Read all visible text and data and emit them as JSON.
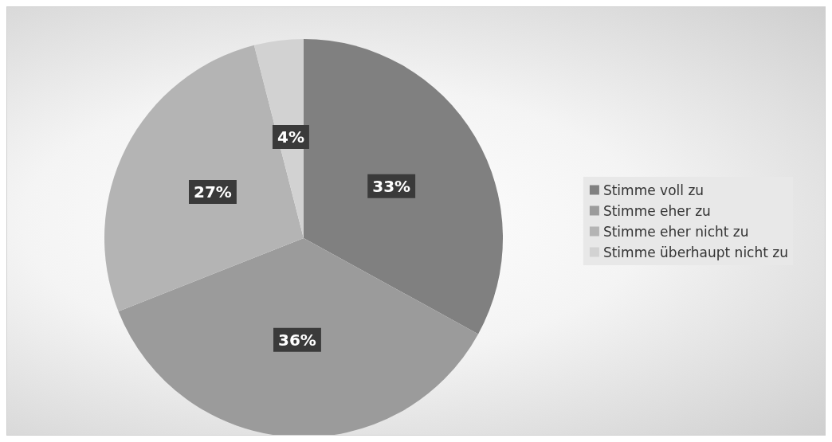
{
  "chart_data": {
    "type": "pie",
    "categories": [
      "Stimme voll zu",
      "Stimme eher zu",
      "Stimme eher nicht zu",
      "Stimme überhaupt nicht zu"
    ],
    "values": [
      33,
      36,
      27,
      4
    ],
    "colors": [
      "#808080",
      "#9b9b9b",
      "#b4b4b4",
      "#d2d2d2"
    ],
    "value_labels": [
      "33%",
      "36%",
      "27%",
      "4%"
    ],
    "legend": "right"
  }
}
